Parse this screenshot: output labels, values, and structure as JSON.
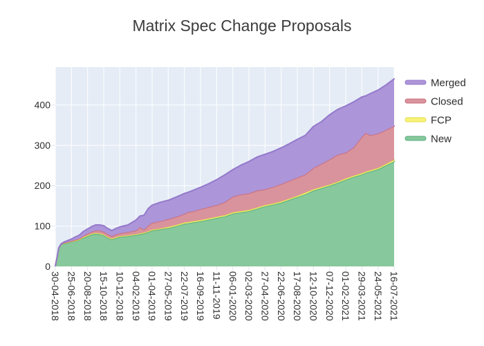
{
  "title": "Matrix Spec Change Proposals",
  "chart_data": {
    "type": "area",
    "stacked": true,
    "title": "Matrix Spec Change Proposals",
    "x_unit": "days since 30-04-2018",
    "x_max": 1176,
    "x_tick_days": [
      0,
      56,
      112,
      168,
      224,
      280,
      336,
      392,
      448,
      504,
      560,
      616,
      672,
      728,
      784,
      840,
      896,
      952,
      1008,
      1064,
      1120,
      1176
    ],
    "x_tick_labels": [
      "30-04-2018",
      "25-06-2018",
      "20-08-2018",
      "15-10-2018",
      "10-12-2018",
      "04-02-2019",
      "01-04-2019",
      "27-05-2019",
      "22-07-2019",
      "16-09-2019",
      "11-11-2019",
      "06-01-2020",
      "02-03-2020",
      "27-04-2020",
      "22-06-2020",
      "17-08-2020",
      "12-10-2020",
      "07-12-2020",
      "01-02-2021",
      "29-03-2021",
      "24-05-2021",
      "16-07-2021"
    ],
    "y_ticks": [
      0,
      100,
      200,
      300,
      400
    ],
    "ylim": [
      0,
      494
    ],
    "grid": true,
    "legend_position": "right-top-outside",
    "background_color": "#e5ecf6",
    "grid_color": "#ffffff",
    "tick_mark_color": "#dfe4ef",
    "x": [
      0,
      6,
      12,
      20,
      32,
      56,
      70,
      84,
      98,
      112,
      126,
      140,
      154,
      168,
      182,
      196,
      210,
      224,
      252,
      280,
      294,
      308,
      322,
      336,
      364,
      392,
      420,
      448,
      462,
      476,
      504,
      532,
      560,
      588,
      616,
      644,
      672,
      700,
      728,
      756,
      784,
      812,
      840,
      868,
      896,
      924,
      952,
      980,
      1008,
      1036,
      1064,
      1078,
      1092,
      1120,
      1148,
      1176
    ],
    "stack_order_bottom_to_top": [
      "New",
      "FCP",
      "Closed",
      "Merged"
    ],
    "series": [
      {
        "name": "new",
        "label": "New",
        "fill": "#87c89c",
        "line": "#56ad7c",
        "values": [
          1,
          22,
          46,
          55,
          57,
          61,
          63,
          66,
          71,
          75,
          79,
          81,
          80,
          77,
          71,
          67,
          70,
          73,
          75,
          78,
          80,
          82,
          85,
          89,
          92,
          95,
          100,
          106,
          107,
          109,
          112,
          116,
          120,
          124,
          131,
          134,
          137,
          143,
          149,
          153,
          158,
          165,
          172,
          179,
          188,
          194,
          200,
          207,
          215,
          222,
          228,
          232,
          235,
          241,
          251,
          260
        ]
      },
      {
        "name": "fcp",
        "label": "FCP",
        "fill": "#f6f377",
        "line": "#e4de4e",
        "values": [
          0,
          0,
          0,
          0,
          1,
          1,
          1,
          1,
          2,
          2,
          2,
          2,
          2,
          2,
          2,
          2,
          2,
          2,
          2,
          2,
          2,
          2,
          2,
          2,
          2,
          3,
          3,
          3,
          3,
          3,
          3,
          3,
          3,
          3,
          3,
          3,
          3,
          3,
          3,
          3,
          3,
          3,
          3,
          4,
          3,
          3,
          3,
          3,
          3,
          3,
          3,
          3,
          3,
          3,
          3,
          4
        ]
      },
      {
        "name": "closed",
        "label": "Closed",
        "fill": "#d9939d",
        "line": "#c96f7e",
        "values": [
          0,
          0,
          0,
          0,
          1,
          1,
          2,
          2,
          3,
          4,
          5,
          6,
          7,
          7,
          7,
          6,
          7,
          7,
          8,
          9,
          15,
          7,
          14,
          17,
          18,
          19,
          20,
          21,
          25,
          24,
          27,
          28,
          29,
          32,
          39,
          41,
          41,
          42,
          39,
          41,
          43,
          44,
          45,
          45,
          53,
          57,
          62,
          67,
          64,
          70,
          90,
          96,
          87,
          85,
          84,
          84
        ]
      },
      {
        "name": "merged",
        "label": "Merged",
        "fill": "#ad95d9",
        "line": "#9379cb",
        "values": [
          0,
          0,
          0,
          1,
          2,
          5,
          7,
          9,
          11,
          12,
          13,
          14,
          14,
          15,
          14,
          14,
          15,
          16,
          18,
          26,
          28,
          36,
          42,
          44,
          47,
          47,
          49,
          51,
          49,
          52,
          54,
          58,
          63,
          68,
          67,
          73,
          79,
          83,
          87,
          88,
          90,
          92,
          95,
          97,
          103,
          105,
          111,
          112,
          116,
          113,
          99,
          92,
          103,
          108,
          112,
          117
        ]
      }
    ],
    "legend_order": [
      "merged",
      "closed",
      "fcp",
      "new"
    ]
  }
}
